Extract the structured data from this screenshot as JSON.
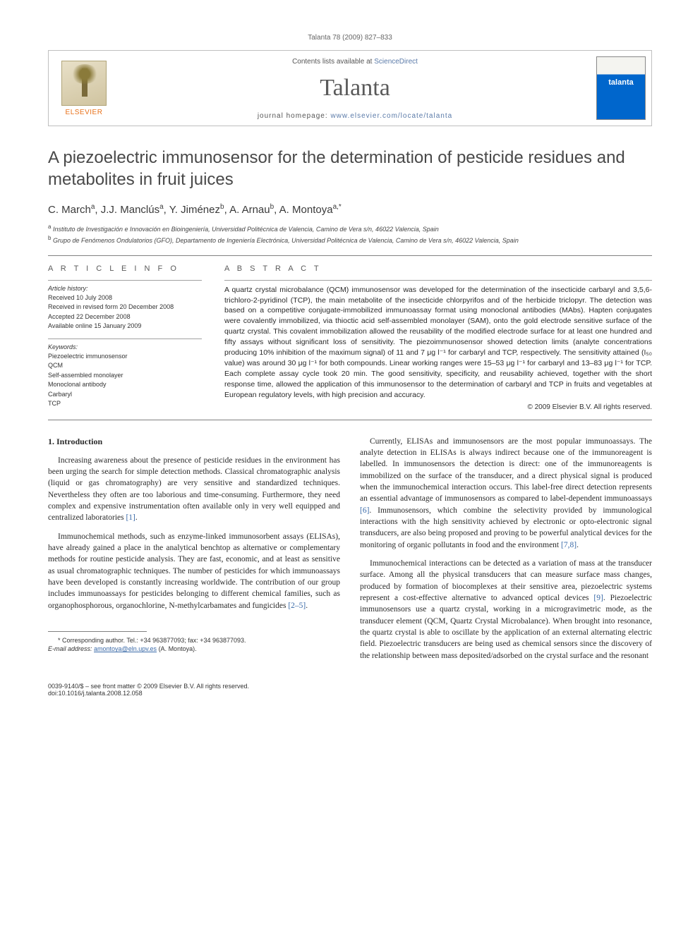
{
  "running_head": "Talanta 78 (2009) 827–833",
  "masthead": {
    "publisher_label": "ELSEVIER",
    "contents_prefix": "Contents lists available at ",
    "contents_link": "ScienceDirect",
    "journal_name": "Talanta",
    "homepage_prefix": "journal homepage: ",
    "homepage_url": "www.elsevier.com/locate/talanta",
    "cover_title": "talanta"
  },
  "title": "A piezoelectric immunosensor for the determination of pesticide residues and metabolites in fruit juices",
  "authors_html": "C. March<sup>a</sup>, J.J. Manclús<sup>a</sup>, Y. Jiménez<sup>b</sup>, A. Arnau<sup>b</sup>, A. Montoya<sup>a,*</sup>",
  "affiliations": [
    {
      "sup": "a",
      "text": "Instituto de Investigación e Innovación en Bioingeniería, Universidad Politécnica de Valencia, Camino de Vera s/n, 46022 Valencia, Spain"
    },
    {
      "sup": "b",
      "text": "Grupo de Fenómenos Ondulatorios (GFO), Departamento de Ingeniería Electrónica, Universidad Politécnica de Valencia, Camino de Vera s/n, 46022 Valencia, Spain"
    }
  ],
  "article_info": {
    "heading": "A R T I C L E   I N F O",
    "history_label": "Article history:",
    "history_lines": [
      "Received 10 July 2008",
      "Received in revised form 20 December 2008",
      "Accepted 22 December 2008",
      "Available online 15 January 2009"
    ],
    "keywords_label": "Keywords:",
    "keywords": [
      "Piezoelectric immunosensor",
      "QCM",
      "Self-assembled monolayer",
      "Monoclonal antibody",
      "Carbaryl",
      "TCP"
    ]
  },
  "abstract": {
    "heading": "A B S T R A C T",
    "text": "A quartz crystal microbalance (QCM) immunosensor was developed for the determination of the insecticide carbaryl and 3,5,6-trichloro-2-pyridinol (TCP), the main metabolite of the insecticide chlorpyrifos and of the herbicide triclopyr. The detection was based on a competitive conjugate-immobilized immunoassay format using monoclonal antibodies (MAbs). Hapten conjugates were covalently immobilized, via thioctic acid self-assembled monolayer (SAM), onto the gold electrode sensitive surface of the quartz crystal. This covalent immobilization allowed the reusability of the modified electrode surface for at least one hundred and fifty assays without significant loss of sensitivity. The piezoimmunosensor showed detection limits (analyte concentrations producing 10% inhibition of the maximum signal) of 11 and 7 μg l⁻¹ for carbaryl and TCP, respectively. The sensitivity attained (I₅₀ value) was around 30 μg l⁻¹ for both compounds. Linear working ranges were 15–53 μg l⁻¹ for carbaryl and 13–83 μg l⁻¹ for TCP. Each complete assay cycle took 20 min. The good sensitivity, specificity, and reusability achieved, together with the short response time, allowed the application of this immunosensor to the determination of carbaryl and TCP in fruits and vegetables at European regulatory levels, with high precision and accuracy.",
    "copyright": "© 2009 Elsevier B.V. All rights reserved."
  },
  "body": {
    "section_heading": "1. Introduction",
    "left_paras": [
      "Increasing awareness about the presence of pesticide residues in the environment has been urging the search for simple detection methods. Classical chromatographic analysis (liquid or gas chromatography) are very sensitive and standardized techniques. Nevertheless they often are too laborious and time-consuming. Furthermore, they need complex and expensive instrumentation often available only in very well equipped and centralized laboratories [1].",
      "Immunochemical methods, such as enzyme-linked immunosorbent assays (ELISAs), have already gained a place in the analytical benchtop as alternative or complementary methods for routine pesticide analysis. They are fast, economic, and at least as sensitive as usual chromatographic techniques. The number of pesticides for which immunoassays have been developed is constantly increasing worldwide. The contribution of our group includes immunoassays for pesticides belonging to different chemical families, such as organophosphorous, organochlorine, N-methylcarbamates and fungicides [2–5]."
    ],
    "right_paras": [
      "Currently, ELISAs and immunosensors are the most popular immunoassays. The analyte detection in ELISAs is always indirect because one of the immunoreagent is labelled. In immunosensors the detection is direct: one of the immunoreagents is immobilized on the surface of the transducer, and a direct physical signal is produced when the immunochemical interaction occurs. This label-free direct detection represents an essential advantage of immunosensors as compared to label-dependent immunoassays [6]. Immunosensors, which combine the selectivity provided by immunological interactions with the high sensitivity achieved by electronic or opto-electronic signal transducers, are also being proposed and proving to be powerful analytical devices for the monitoring of organic pollutants in food and the environment [7,8].",
      "Immunochemical interactions can be detected as a variation of mass at the transducer surface. Among all the physical transducers that can measure surface mass changes, produced by formation of biocomplexes at their sensitive area, piezoelectric systems represent a cost-effective alternative to advanced optical devices [9]. Piezoelectric immunosensors use a quartz crystal, working in a microgravimetric mode, as the transducer element (QCM, Quartz Crystal Microbalance). When brought into resonance, the quartz crystal is able to oscillate by the application of an external alternating electric field. Piezoelectric transducers are being used as chemical sensors since the discovery of the relationship between mass deposited/adsorbed on the crystal surface and the resonant"
    ]
  },
  "footnote": {
    "corr_line": "* Corresponding author. Tel.: +34 963877093; fax: +34 963877093.",
    "email_label": "E-mail address: ",
    "email": "amontoya@eln.upv.es",
    "email_suffix": " (A. Montoya)."
  },
  "footer": {
    "line1": "0039-9140/$ – see front matter © 2009 Elsevier B.V. All rights reserved.",
    "line2": "doi:10.1016/j.talanta.2008.12.058"
  },
  "colors": {
    "link": "#3a6aa8",
    "elsevier_orange": "#e8711a",
    "text": "#2a2a2a",
    "rule": "#808080"
  }
}
